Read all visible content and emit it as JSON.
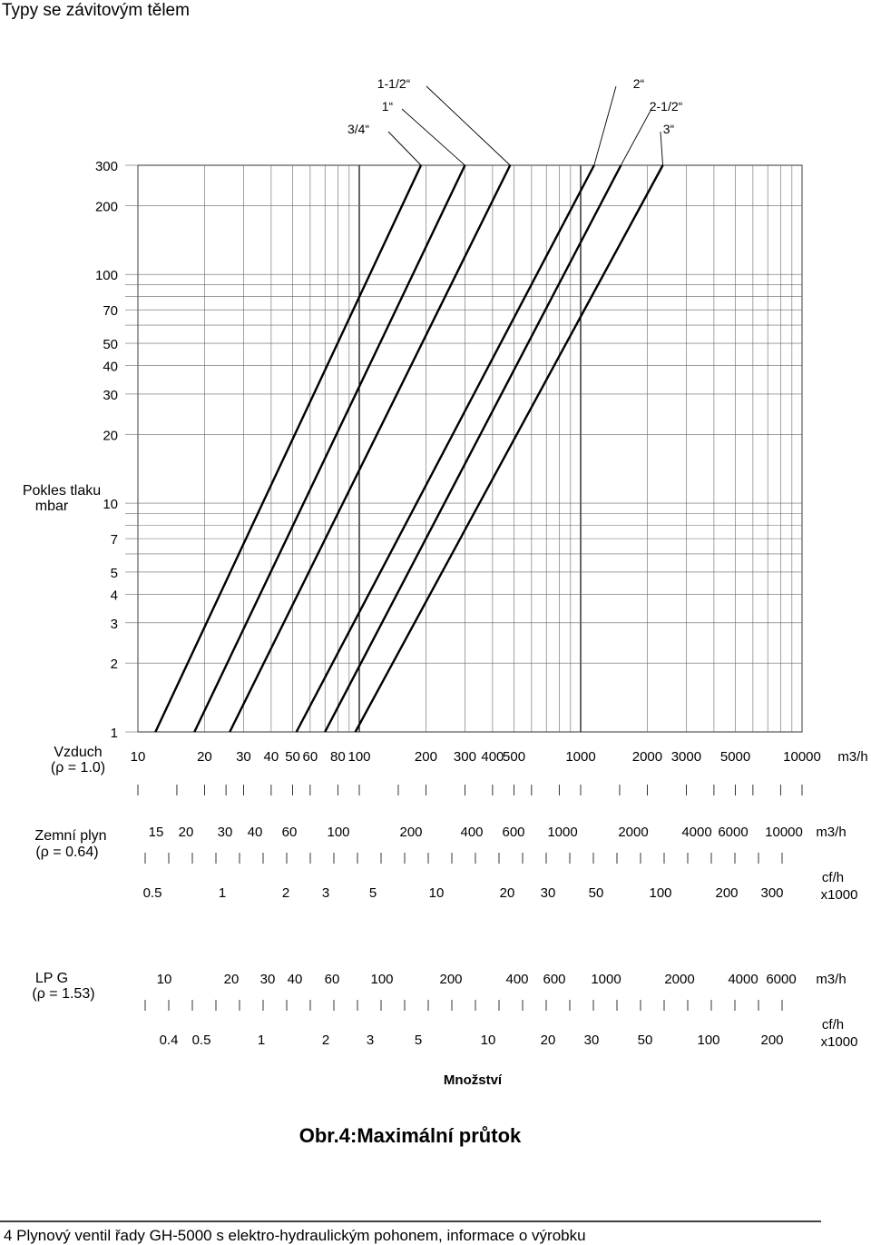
{
  "page": {
    "heading": "Typy se závitovým tělem",
    "caption": "Obr.4:Maximální průtok",
    "footer": "4 Plynový ventil řady GH-5000 s elektro-hydraulickým pohonem, informace o výrobku",
    "quantity_label": "Množství"
  },
  "chart_data": {
    "type": "line",
    "title": "",
    "x_scale": "log",
    "y_scale": "log",
    "xlim": [
      10,
      10000
    ],
    "ylim": [
      1,
      300
    ],
    "ylabel": "Pokles tlaku mbar",
    "xunit": "m3/h",
    "y_ticks": [
      "300",
      "200",
      "100",
      "70",
      "50",
      "40",
      "30",
      "20",
      "10",
      "7",
      "5",
      "4",
      "3",
      "2",
      "1"
    ],
    "x_ticks": [
      "10",
      "20",
      "30",
      "40",
      "50",
      "60",
      "80",
      "100",
      "200",
      "300",
      "400",
      "500",
      "1000",
      "2000",
      "3000",
      "5000",
      "10000"
    ],
    "series": [
      {
        "name": "3/4“",
        "x_at_1": 12,
        "x_at_300": 190
      },
      {
        "name": "1“",
        "x_at_1": 18,
        "x_at_300": 300
      },
      {
        "name": "1-1/2“",
        "x_at_1": 26,
        "x_at_300": 480
      },
      {
        "name": "2“",
        "x_at_1": 52,
        "x_at_300": 1150
      },
      {
        "name": "2-1/2“",
        "x_at_1": 70,
        "x_at_300": 1520
      },
      {
        "name": "3“",
        "x_at_1": 96,
        "x_at_300": 2350
      }
    ],
    "series_label_lines": [
      "3/4“",
      "1“",
      "1-1/2“",
      "2“",
      "2-1/2“",
      "3“"
    ],
    "gas_scales": [
      {
        "name": "Vzduch",
        "density": "(ρ = 1.0)",
        "m3h_ticks": [
          "10",
          "20",
          "30",
          "40",
          "50",
          "60",
          "80",
          "100",
          "200",
          "300",
          "400",
          "500",
          "1000",
          "2000",
          "3000",
          "5000",
          "10000"
        ],
        "m3h_unit": "m3/h"
      },
      {
        "name": "Zemní plyn",
        "density": "(ρ = 0.64)",
        "m3h_ticks": [
          "15",
          "20",
          "30",
          "40",
          "60",
          "100",
          "200",
          "400",
          "600",
          "1000",
          "2000",
          "4000",
          "6000",
          "10000"
        ],
        "m3h_unit": "m3/h",
        "cfh_ticks": [
          "0.5",
          "1",
          "2",
          "3",
          "5",
          "10",
          "20",
          "30",
          "50",
          "100",
          "200",
          "300"
        ],
        "cfh_unit": "cf/h x1000"
      },
      {
        "name": "LP G",
        "density": "(ρ = 1.53)",
        "m3h_ticks": [
          "10",
          "20",
          "30",
          "40",
          "60",
          "100",
          "200",
          "400",
          "600",
          "1000",
          "2000",
          "4000",
          "6000"
        ],
        "m3h_unit": "m3/h",
        "cfh_ticks": [
          "0.4",
          "0.5",
          "1",
          "2",
          "3",
          "5",
          "10",
          "20",
          "30",
          "50",
          "100",
          "200"
        ],
        "cfh_unit": "cf/h x1000"
      }
    ]
  }
}
